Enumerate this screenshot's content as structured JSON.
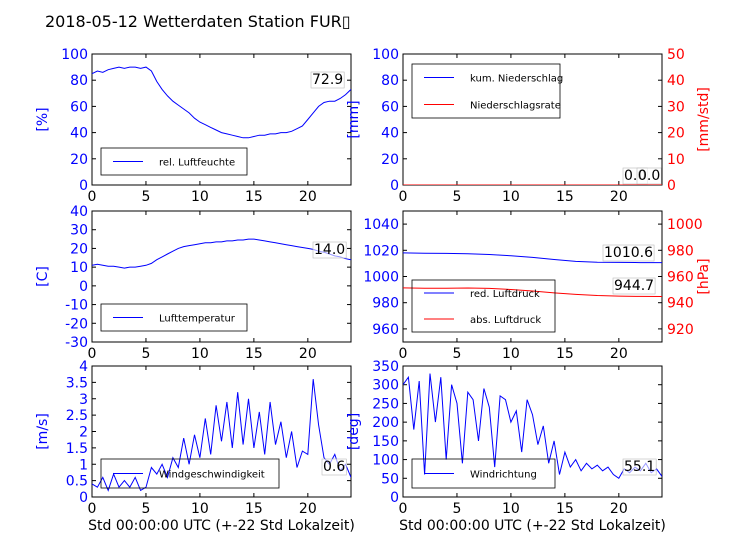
{
  "title": "2018-05-12 Wetterdaten Station FUR▯",
  "xlabel": "Std 00:00:00 UTC (+-22 Std Lokalzeit)",
  "colors": {
    "left": "#0000ff",
    "right": "#ff0000",
    "axis": "#000000"
  },
  "chart_data": [
    {
      "type": "line",
      "ylabel": "[%]",
      "xlim": [
        0,
        24
      ],
      "ylim": [
        0,
        100
      ],
      "xticks": [
        0,
        5,
        10,
        15,
        20
      ],
      "yticks": [
        0,
        20,
        40,
        60,
        80,
        100
      ],
      "grid": false,
      "legend_position": "lower-left",
      "series": [
        {
          "name": "rel. Luftfeuchte",
          "axis": "left",
          "x": [
            0,
            0.5,
            1,
            1.5,
            2,
            2.5,
            3,
            3.5,
            4,
            4.5,
            5,
            5.5,
            6,
            6.5,
            7,
            7.5,
            8,
            8.5,
            9,
            9.5,
            10,
            10.5,
            11,
            11.5,
            12,
            12.5,
            13,
            13.5,
            14,
            14.5,
            15,
            15.5,
            16,
            16.5,
            17,
            17.5,
            18,
            18.5,
            19,
            19.5,
            20,
            20.5,
            21,
            21.5,
            22,
            22.5,
            23,
            23.5,
            24
          ],
          "y": [
            85,
            87,
            86,
            88,
            89,
            90,
            89,
            90,
            90,
            89,
            90,
            87,
            79,
            73,
            68,
            64,
            61,
            58,
            55,
            51,
            48,
            46,
            44,
            42,
            40,
            39,
            38,
            37,
            36,
            36,
            37,
            38,
            38,
            39,
            39,
            40,
            40,
            41,
            43,
            45,
            50,
            55,
            60,
            63,
            64,
            64,
            66,
            69,
            73
          ]
        }
      ],
      "annotation": "72.9"
    },
    {
      "type": "line",
      "ylabel": "[mm]",
      "ylabel_right": "[mm/std]",
      "xlim": [
        0,
        24
      ],
      "ylim": [
        0,
        100
      ],
      "ylim_right": [
        0,
        50
      ],
      "xticks": [
        0,
        5,
        10,
        15,
        20
      ],
      "yticks": [
        0,
        20,
        40,
        60,
        80,
        100
      ],
      "yticks_right": [
        0,
        10,
        20,
        30,
        40,
        50
      ],
      "grid": false,
      "legend_position": "upper-left",
      "series": [
        {
          "name": "kum. Niederschlag",
          "axis": "left",
          "x": [
            0,
            24
          ],
          "y": [
            0,
            0
          ]
        },
        {
          "name": "Niederschlagsrate",
          "axis": "right",
          "x": [
            0,
            24
          ],
          "y": [
            0,
            0
          ]
        }
      ],
      "annotations": [
        "0.0",
        "0.0"
      ]
    },
    {
      "type": "line",
      "ylabel": "[C]",
      "xlim": [
        0,
        24
      ],
      "ylim": [
        -30,
        40
      ],
      "xticks": [
        0,
        5,
        10,
        15,
        20
      ],
      "yticks": [
        -30,
        -20,
        -10,
        0,
        10,
        20,
        30,
        40
      ],
      "grid": false,
      "legend_position": "lower-left",
      "series": [
        {
          "name": "Lufttemperatur",
          "axis": "left",
          "x": [
            0,
            0.5,
            1,
            1.5,
            2,
            2.5,
            3,
            3.5,
            4,
            4.5,
            5,
            5.5,
            6,
            6.5,
            7,
            7.5,
            8,
            8.5,
            9,
            9.5,
            10,
            10.5,
            11,
            11.5,
            12,
            12.5,
            13,
            13.5,
            14,
            14.5,
            15,
            15.5,
            16,
            16.5,
            17,
            17.5,
            18,
            18.5,
            19,
            19.5,
            20,
            20.5,
            21,
            21.5,
            22,
            22.5,
            23,
            23.5,
            24
          ],
          "y": [
            11,
            11.5,
            11,
            10.5,
            10.5,
            10,
            9.5,
            10,
            10,
            10.5,
            11,
            12,
            14,
            15.5,
            17,
            18.5,
            20,
            21,
            21.5,
            22,
            22.5,
            23,
            23,
            23.5,
            23.5,
            24,
            24,
            24.5,
            24.5,
            25,
            25,
            24.5,
            24,
            23.5,
            23,
            22.5,
            22,
            21.5,
            21,
            20.5,
            20,
            19.5,
            18.5,
            18,
            17,
            16,
            15.5,
            14.5,
            14
          ]
        }
      ],
      "annotation": "14.0"
    },
    {
      "type": "line",
      "ylabel_right": "[hPa]",
      "xlim": [
        0,
        24
      ],
      "ylim": [
        950,
        1050
      ],
      "ylim_right": [
        910,
        1010
      ],
      "xticks": [
        0,
        5,
        10,
        15,
        20
      ],
      "yticks": [
        960,
        980,
        1000,
        1020,
        1040
      ],
      "yticks_right": [
        920,
        940,
        960,
        980,
        1000
      ],
      "grid": false,
      "legend_position": "lower-left",
      "series": [
        {
          "name": "red. Luftdruck",
          "axis": "left",
          "x": [
            0,
            2,
            4,
            6,
            8,
            10,
            12,
            14,
            16,
            18,
            20,
            22,
            24
          ],
          "y": [
            1018,
            1017.8,
            1017.6,
            1017.3,
            1016.8,
            1015.8,
            1014.6,
            1013,
            1011.5,
            1010.9,
            1010.8,
            1010.6,
            1010.6
          ]
        },
        {
          "name": "abs. Luftdruck",
          "axis": "right",
          "x": [
            0,
            2,
            4,
            6,
            8,
            10,
            12,
            14,
            16,
            18,
            20,
            22,
            24
          ],
          "y": [
            951.3,
            951.1,
            951.0,
            951.2,
            950.9,
            950.1,
            948.9,
            947.5,
            946.3,
            945.5,
            945.0,
            944.8,
            944.7
          ]
        }
      ],
      "annotations": [
        "1010.6",
        "944.7"
      ]
    },
    {
      "type": "line",
      "ylabel": "[m/s]",
      "xlabel": "Std 00:00:00 UTC (+-22 Std Lokalzeit)",
      "xlim": [
        0,
        24
      ],
      "ylim": [
        0,
        4
      ],
      "xticks": [
        0,
        5,
        10,
        15,
        20
      ],
      "yticks": [
        0,
        0.5,
        1,
        1.5,
        2,
        2.5,
        3,
        3.5,
        4
      ],
      "grid": false,
      "legend_position": "lower-center",
      "series": [
        {
          "name": "Windgeschwindigkeit",
          "axis": "left",
          "x": [
            0,
            0.5,
            1,
            1.5,
            2,
            2.5,
            3,
            3.5,
            4,
            4.5,
            5,
            5.5,
            6,
            6.5,
            7,
            7.5,
            8,
            8.5,
            9,
            9.5,
            10,
            10.5,
            11,
            11.5,
            12,
            12.5,
            13,
            13.5,
            14,
            14.5,
            15,
            15.5,
            16,
            16.5,
            17,
            17.5,
            18,
            18.5,
            19,
            19.5,
            20,
            20.5,
            21,
            21.5,
            22,
            22.5,
            23,
            23.5,
            24
          ],
          "y": [
            0.4,
            0.3,
            0.6,
            0.2,
            0.7,
            0.3,
            0.5,
            0.3,
            0.6,
            0.2,
            0.3,
            0.9,
            0.7,
            1.0,
            0.6,
            1.2,
            0.9,
            1.8,
            1.0,
            1.9,
            1.2,
            2.4,
            1.3,
            2.8,
            1.7,
            2.9,
            1.5,
            3.2,
            1.6,
            3.0,
            1.5,
            2.6,
            1.3,
            2.9,
            1.6,
            2.3,
            1.2,
            2.0,
            0.9,
            1.4,
            1.3,
            3.6,
            2.2,
            1.2,
            1.0,
            1.3,
            0.8,
            1.0,
            0.6
          ]
        }
      ],
      "annotation": "0.6"
    },
    {
      "type": "line",
      "ylabel": "[deg]",
      "xlabel": "Std 00:00:00 UTC (+-22 Std Lokalzeit)",
      "xlim": [
        0,
        24
      ],
      "ylim": [
        0,
        350
      ],
      "xticks": [
        0,
        5,
        10,
        15,
        20
      ],
      "yticks": [
        0,
        50,
        100,
        150,
        200,
        250,
        300,
        350
      ],
      "grid": false,
      "legend_position": "lower-left",
      "series": [
        {
          "name": "Windrichtung",
          "axis": "left",
          "x": [
            0,
            0.5,
            1,
            1.5,
            2,
            2.5,
            3,
            3.5,
            4,
            4.5,
            5,
            5.5,
            6,
            6.5,
            7,
            7.5,
            8,
            8.5,
            9,
            9.5,
            10,
            10.5,
            11,
            11.5,
            12,
            12.5,
            13,
            13.5,
            14,
            14.5,
            15,
            15.5,
            16,
            16.5,
            17,
            17.5,
            18,
            18.5,
            19,
            19.5,
            20,
            20.5,
            21,
            21.5,
            22,
            22.5,
            23,
            23.5,
            24
          ],
          "y": [
            300,
            320,
            180,
            310,
            60,
            330,
            200,
            320,
            100,
            300,
            250,
            90,
            280,
            260,
            150,
            290,
            240,
            80,
            270,
            260,
            200,
            230,
            120,
            260,
            220,
            140,
            190,
            90,
            150,
            60,
            120,
            80,
            100,
            70,
            90,
            75,
            85,
            70,
            80,
            60,
            50,
            75,
            65,
            80,
            70,
            90,
            65,
            75,
            55
          ]
        }
      ],
      "annotation": "55.1"
    }
  ]
}
